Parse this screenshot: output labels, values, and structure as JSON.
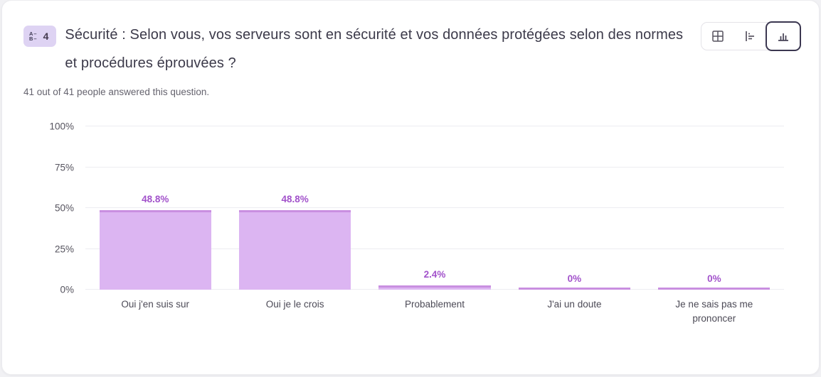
{
  "header": {
    "badge": {
      "number": "4",
      "icon": "multiple-choice-question-icon"
    },
    "title": "Sécurité : Selon vous, vos serveurs sont en sécurité et vos données protégées selon des normes et procédures éprouvées ?",
    "views": [
      {
        "id": "table-view",
        "icon": "table-grid-icon",
        "selected": false
      },
      {
        "id": "horizontal-bar-view",
        "icon": "horizontal-bar-chart-icon",
        "selected": false
      },
      {
        "id": "vertical-bar-view",
        "icon": "vertical-bar-chart-icon",
        "selected": true
      }
    ]
  },
  "subtitle": "41 out of 41 people answered this question.",
  "chart_data": {
    "type": "bar",
    "title": "",
    "xlabel": "",
    "ylabel": "",
    "categories": [
      "Oui j'en suis sur",
      "Oui je le crois",
      "Probablement",
      "J'ai un doute",
      "Je ne sais pas me prononcer"
    ],
    "values": [
      48.8,
      48.8,
      2.4,
      0,
      0
    ],
    "value_labels": [
      "48.8%",
      "48.8%",
      "2.4%",
      "0%",
      "0%"
    ],
    "ylim": [
      0,
      100
    ],
    "yticks": [
      {
        "value": 0,
        "label": "0%"
      },
      {
        "value": 25,
        "label": "25%"
      },
      {
        "value": 50,
        "label": "50%"
      },
      {
        "value": 75,
        "label": "75%"
      },
      {
        "value": 100,
        "label": "100%"
      }
    ],
    "grid": true,
    "legend": false,
    "bar_color": "#dcb5f2",
    "bar_edge_color": "#c98fe0",
    "label_color": "#a252cb"
  },
  "colors": {
    "card_background": "#ffffff",
    "page_background": "#f1f1f4",
    "badge_background": "#ded3f3",
    "title_text": "#3c3a4a",
    "subtitle_text": "#65636e",
    "selected_view_border": "#3b3750",
    "gridline": "#ededf1"
  }
}
